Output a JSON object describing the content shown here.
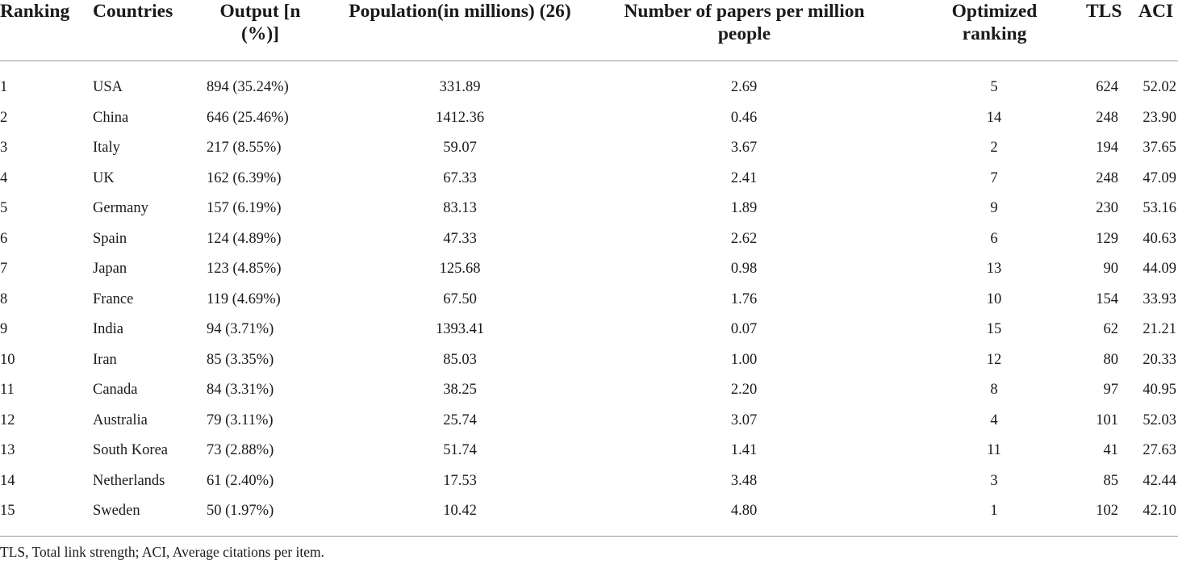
{
  "table": {
    "headers": {
      "ranking": "Ranking",
      "countries": "Countries",
      "output": "Output [n (%)]",
      "population": "Population(in millions) (26)",
      "papers_per_million": "Number of papers per million people",
      "optimized_ranking": "Optimized ranking",
      "tls": "TLS",
      "aci": "ACI"
    },
    "rows": [
      {
        "ranking": "1",
        "country": "USA",
        "output": "894 (35.24%)",
        "population": "331.89",
        "papers": "2.69",
        "optimized": "5",
        "tls": "624",
        "aci": "52.02"
      },
      {
        "ranking": "2",
        "country": "China",
        "output": "646 (25.46%)",
        "population": "1412.36",
        "papers": "0.46",
        "optimized": "14",
        "tls": "248",
        "aci": "23.90"
      },
      {
        "ranking": "3",
        "country": "Italy",
        "output": "217 (8.55%)",
        "population": "59.07",
        "papers": "3.67",
        "optimized": "2",
        "tls": "194",
        "aci": "37.65"
      },
      {
        "ranking": "4",
        "country": "UK",
        "output": "162 (6.39%)",
        "population": "67.33",
        "papers": "2.41",
        "optimized": "7",
        "tls": "248",
        "aci": "47.09"
      },
      {
        "ranking": "5",
        "country": "Germany",
        "output": "157 (6.19%)",
        "population": "83.13",
        "papers": "1.89",
        "optimized": "9",
        "tls": "230",
        "aci": "53.16"
      },
      {
        "ranking": "6",
        "country": "Spain",
        "output": "124 (4.89%)",
        "population": "47.33",
        "papers": "2.62",
        "optimized": "6",
        "tls": "129",
        "aci": "40.63"
      },
      {
        "ranking": "7",
        "country": "Japan",
        "output": "123 (4.85%)",
        "population": "125.68",
        "papers": "0.98",
        "optimized": "13",
        "tls": "90",
        "aci": "44.09"
      },
      {
        "ranking": "8",
        "country": "France",
        "output": "119 (4.69%)",
        "population": "67.50",
        "papers": "1.76",
        "optimized": "10",
        "tls": "154",
        "aci": "33.93"
      },
      {
        "ranking": "9",
        "country": "India",
        "output": "94 (3.71%)",
        "population": "1393.41",
        "papers": "0.07",
        "optimized": "15",
        "tls": "62",
        "aci": "21.21"
      },
      {
        "ranking": "10",
        "country": "Iran",
        "output": "85 (3.35%)",
        "population": "85.03",
        "papers": "1.00",
        "optimized": "12",
        "tls": "80",
        "aci": "20.33"
      },
      {
        "ranking": "11",
        "country": "Canada",
        "output": "84 (3.31%)",
        "population": "38.25",
        "papers": "2.20",
        "optimized": "8",
        "tls": "97",
        "aci": "40.95"
      },
      {
        "ranking": "12",
        "country": "Australia",
        "output": "79 (3.11%)",
        "population": "25.74",
        "papers": "3.07",
        "optimized": "4",
        "tls": "101",
        "aci": "52.03"
      },
      {
        "ranking": "13",
        "country": "South Korea",
        "output": "73 (2.88%)",
        "population": "51.74",
        "papers": "1.41",
        "optimized": "11",
        "tls": "41",
        "aci": "27.63"
      },
      {
        "ranking": "14",
        "country": "Netherlands",
        "output": "61 (2.40%)",
        "population": "17.53",
        "papers": "3.48",
        "optimized": "3",
        "tls": "85",
        "aci": "42.44"
      },
      {
        "ranking": "15",
        "country": "Sweden",
        "output": "50 (1.97%)",
        "population": "10.42",
        "papers": "4.80",
        "optimized": "1",
        "tls": "102",
        "aci": "42.10"
      }
    ]
  },
  "footnote": "TLS, Total link strength; ACI, Average citations per item."
}
